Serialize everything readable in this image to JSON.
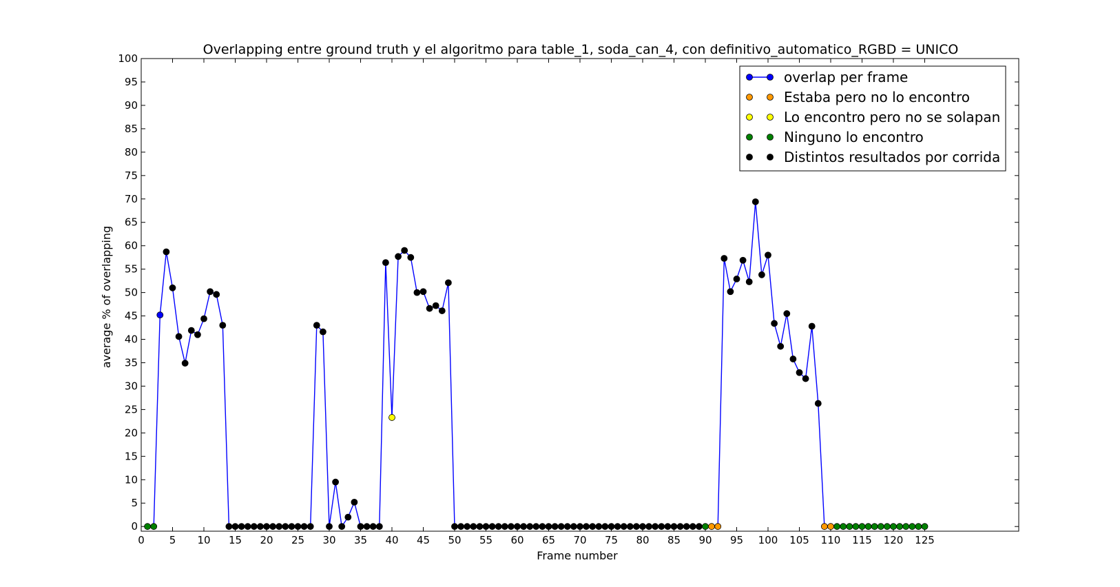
{
  "chart_data": {
    "type": "line",
    "title": "Overlapping entre ground truth y el algoritmo para table_1, soda_can_4, con definitivo_automatico_RGBD = UNICO",
    "xlabel": "Frame number",
    "ylabel": "average % of overlapping",
    "xlim": [
      0,
      140
    ],
    "ylim": [
      -1,
      100
    ],
    "xticks": [
      0,
      5,
      10,
      15,
      20,
      25,
      30,
      35,
      40,
      45,
      50,
      55,
      60,
      65,
      70,
      75,
      80,
      85,
      90,
      95,
      100,
      105,
      110,
      115,
      120,
      125
    ],
    "yticks": [
      0,
      5,
      10,
      15,
      20,
      25,
      30,
      35,
      40,
      45,
      50,
      55,
      60,
      65,
      70,
      75,
      80,
      85,
      90,
      95,
      100
    ],
    "grid": false,
    "legend_position": "top-right",
    "colors": {
      "line": "#0000ff",
      "overlap": "#0000ff",
      "missed": "#ff9900",
      "no_overlap": "#ffff00",
      "none_found": "#008000",
      "varied": "#000000"
    },
    "legend": [
      {
        "label": "overlap per frame",
        "kind": "line",
        "color": "#0000ff"
      },
      {
        "label": "Estaba pero no lo encontro",
        "kind": "marker",
        "color": "#ff9900"
      },
      {
        "label": "Lo encontro pero no se solapan",
        "kind": "marker",
        "color": "#ffff00"
      },
      {
        "label": "Ninguno lo encontro",
        "kind": "marker",
        "color": "#008000"
      },
      {
        "label": "Distintos resultados por corrida",
        "kind": "marker",
        "color": "#000000"
      }
    ],
    "series": [
      {
        "name": "overlap per frame",
        "x": [
          1,
          2,
          3,
          4,
          5,
          6,
          7,
          8,
          9,
          10,
          11,
          12,
          13,
          14,
          15,
          16,
          17,
          18,
          19,
          20,
          21,
          22,
          23,
          24,
          25,
          26,
          27,
          28,
          29,
          30,
          31,
          32,
          33,
          34,
          35,
          36,
          37,
          38,
          39,
          40,
          41,
          42,
          43,
          44,
          45,
          46,
          47,
          48,
          49,
          50,
          51,
          52,
          53,
          54,
          55,
          56,
          57,
          58,
          59,
          60,
          61,
          62,
          63,
          64,
          65,
          66,
          67,
          68,
          69,
          70,
          71,
          72,
          73,
          74,
          75,
          76,
          77,
          78,
          79,
          80,
          81,
          82,
          83,
          84,
          85,
          86,
          87,
          88,
          89,
          90,
          91,
          92,
          93,
          94,
          95,
          96,
          97,
          98,
          99,
          100,
          101,
          102,
          103,
          104,
          105,
          106,
          107,
          108,
          109,
          110,
          111,
          112,
          113,
          114,
          115,
          116,
          117,
          118,
          119,
          120,
          121,
          122,
          123,
          124,
          125
        ],
        "y": [
          0,
          0,
          45.2,
          58.7,
          51,
          40.6,
          34.9,
          41.9,
          41,
          44.4,
          50.2,
          49.6,
          43,
          0,
          0,
          0,
          0,
          0,
          0,
          0,
          0,
          0,
          0,
          0,
          0,
          0,
          0,
          43,
          41.6,
          0,
          9.5,
          0,
          2,
          5.2,
          0,
          0,
          0,
          0,
          56.4,
          23.3,
          57.7,
          59,
          57.5,
          50,
          50.2,
          46.6,
          47.2,
          46.1,
          52.1,
          0,
          0,
          0,
          0,
          0,
          0,
          0,
          0,
          0,
          0,
          0,
          0,
          0,
          0,
          0,
          0,
          0,
          0,
          0,
          0,
          0,
          0,
          0,
          0,
          0,
          0,
          0,
          0,
          0,
          0,
          0,
          0,
          0,
          0,
          0,
          0,
          0,
          0,
          0,
          0,
          0,
          0,
          0,
          57.3,
          50.2,
          52.9,
          56.9,
          52.3,
          69.4,
          53.8,
          58,
          43.4,
          38.5,
          45.5,
          35.8,
          32.9,
          31.6,
          42.8,
          26.3,
          0,
          0,
          0,
          0,
          0,
          0,
          0,
          0,
          0,
          0,
          0,
          0,
          0,
          0,
          0,
          0,
          0
        ],
        "categories": [
          "none_found",
          "none_found",
          "overlap",
          "varied",
          "varied",
          "varied",
          "varied",
          "varied",
          "varied",
          "varied",
          "varied",
          "varied",
          "varied",
          "varied",
          "varied",
          "varied",
          "varied",
          "varied",
          "varied",
          "varied",
          "varied",
          "varied",
          "varied",
          "varied",
          "varied",
          "varied",
          "varied",
          "varied",
          "varied",
          "varied",
          "varied",
          "varied",
          "varied",
          "varied",
          "varied",
          "varied",
          "varied",
          "varied",
          "varied",
          "no_overlap",
          "varied",
          "varied",
          "varied",
          "varied",
          "varied",
          "varied",
          "varied",
          "varied",
          "varied",
          "varied",
          "varied",
          "varied",
          "varied",
          "varied",
          "varied",
          "varied",
          "varied",
          "varied",
          "varied",
          "varied",
          "varied",
          "varied",
          "varied",
          "varied",
          "varied",
          "varied",
          "varied",
          "varied",
          "varied",
          "varied",
          "varied",
          "varied",
          "varied",
          "varied",
          "varied",
          "varied",
          "varied",
          "varied",
          "varied",
          "varied",
          "varied",
          "varied",
          "varied",
          "varied",
          "varied",
          "varied",
          "varied",
          "varied",
          "varied",
          "none_found",
          "missed",
          "missed",
          "varied",
          "varied",
          "varied",
          "varied",
          "varied",
          "varied",
          "varied",
          "varied",
          "varied",
          "varied",
          "varied",
          "varied",
          "varied",
          "varied",
          "varied",
          "varied",
          "missed",
          "missed",
          "none_found",
          "none_found",
          "none_found",
          "none_found",
          "none_found",
          "none_found",
          "none_found",
          "none_found",
          "none_found",
          "none_found",
          "none_found",
          "none_found",
          "none_found",
          "none_found",
          "none_found"
        ]
      }
    ]
  }
}
